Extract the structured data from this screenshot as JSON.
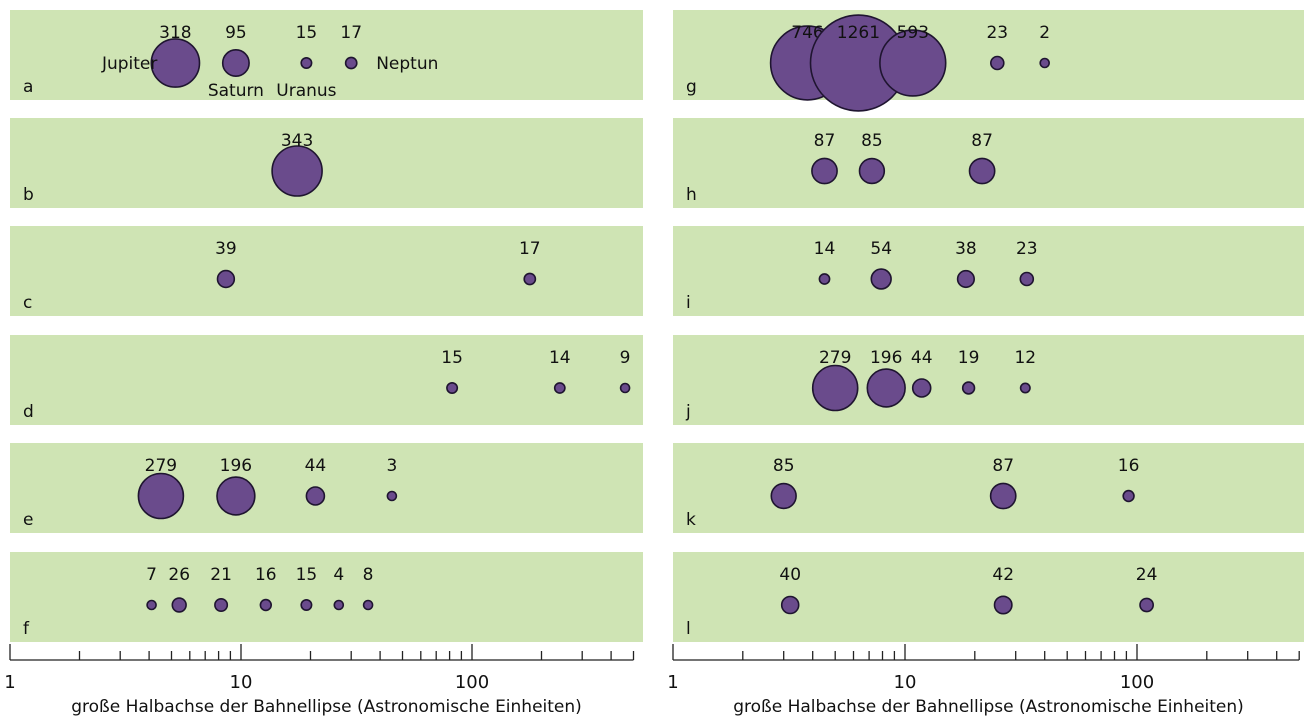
{
  "chart_data": {
    "type": "scatter",
    "x_scale": "log",
    "x_range": [
      1,
      500
    ],
    "x_ticks_labeled": [
      1,
      10,
      100
    ],
    "x_tick_labels": [
      "1",
      "10",
      "100"
    ],
    "xlabel": "große Halbachse der Bahnellipse (Astronomische Einheiten)",
    "value_meaning": "planet mass label shown above each circle; circle area scales with value",
    "columns": [
      {
        "panels": [
          {
            "id": "a",
            "points": [
              {
                "x": 5.2,
                "value": 318,
                "name": "Jupiter"
              },
              {
                "x": 9.5,
                "value": 95,
                "name": "Saturn"
              },
              {
                "x": 19.2,
                "value": 15,
                "name": "Uranus"
              },
              {
                "x": 30,
                "value": 17,
                "name": "Neptun"
              }
            ]
          },
          {
            "id": "b",
            "points": [
              {
                "x": 17.5,
                "value": 343
              }
            ]
          },
          {
            "id": "c",
            "points": [
              {
                "x": 8.6,
                "value": 39
              },
              {
                "x": 178,
                "value": 17
              }
            ]
          },
          {
            "id": "d",
            "points": [
              {
                "x": 82,
                "value": 15
              },
              {
                "x": 240,
                "value": 14
              },
              {
                "x": 460,
                "value": 9
              }
            ]
          },
          {
            "id": "e",
            "points": [
              {
                "x": 4.5,
                "value": 279
              },
              {
                "x": 9.5,
                "value": 196
              },
              {
                "x": 21,
                "value": 44
              },
              {
                "x": 45,
                "value": 3
              }
            ]
          },
          {
            "id": "f",
            "points": [
              {
                "x": 4.1,
                "value": 7
              },
              {
                "x": 5.4,
                "value": 26
              },
              {
                "x": 8.2,
                "value": 21
              },
              {
                "x": 12.8,
                "value": 16
              },
              {
                "x": 19.2,
                "value": 15
              },
              {
                "x": 26.5,
                "value": 4
              },
              {
                "x": 35.5,
                "value": 8
              }
            ]
          }
        ]
      },
      {
        "panels": [
          {
            "id": "g",
            "points": [
              {
                "x": 3.8,
                "value": 746
              },
              {
                "x": 6.3,
                "value": 1261
              },
              {
                "x": 10.8,
                "value": 593
              },
              {
                "x": 25,
                "value": 23
              },
              {
                "x": 40,
                "value": 2
              }
            ]
          },
          {
            "id": "h",
            "points": [
              {
                "x": 4.5,
                "value": 87
              },
              {
                "x": 7.2,
                "value": 85
              },
              {
                "x": 21.5,
                "value": 87
              }
            ]
          },
          {
            "id": "i",
            "points": [
              {
                "x": 4.5,
                "value": 14
              },
              {
                "x": 7.9,
                "value": 54
              },
              {
                "x": 18.3,
                "value": 38
              },
              {
                "x": 33.5,
                "value": 23
              }
            ]
          },
          {
            "id": "j",
            "points": [
              {
                "x": 5,
                "value": 279
              },
              {
                "x": 8.3,
                "value": 196
              },
              {
                "x": 11.8,
                "value": 44
              },
              {
                "x": 18.8,
                "value": 19
              },
              {
                "x": 33,
                "value": 12
              }
            ]
          },
          {
            "id": "k",
            "points": [
              {
                "x": 3,
                "value": 85
              },
              {
                "x": 26.5,
                "value": 87
              },
              {
                "x": 92,
                "value": 16
              }
            ]
          },
          {
            "id": "l",
            "points": [
              {
                "x": 3.2,
                "value": 40
              },
              {
                "x": 26.5,
                "value": 42
              },
              {
                "x": 110,
                "value": 24
              }
            ]
          }
        ]
      }
    ]
  }
}
